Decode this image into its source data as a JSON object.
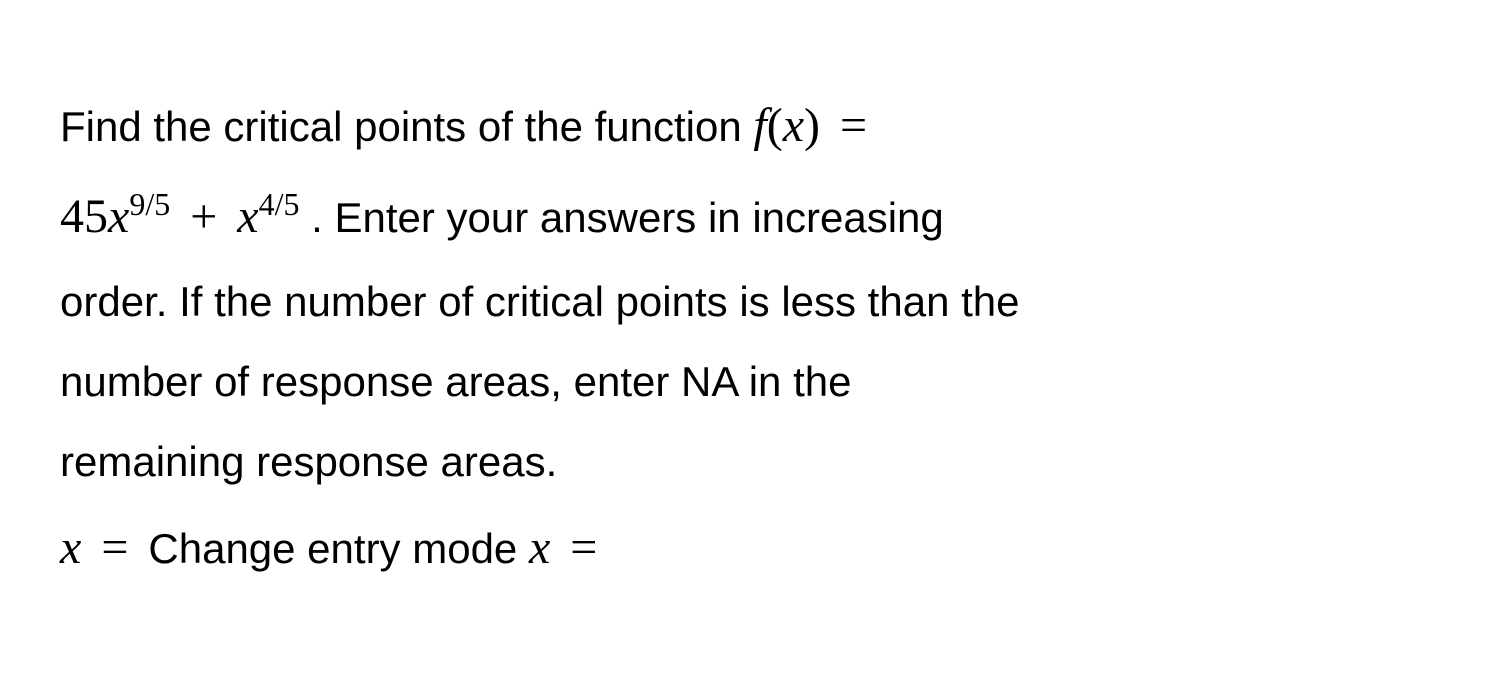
{
  "problem": {
    "text1": "Find the critical points of the function ",
    "func_lhs": "f",
    "func_paren_open": "(",
    "func_var": "x",
    "func_paren_close": ")",
    "equals": " = ",
    "coeff1": "45",
    "var1": "x",
    "exp1": "9/5",
    "plus": " + ",
    "var2": "x",
    "exp2": "4/5",
    "text2": " . Enter your answers in increasing",
    "text3": "order. If the number of critical points is less than the",
    "text4": "number of response areas, enter NA in the",
    "text5": "remaining response areas.",
    "answer_var1": "x",
    "answer_eq1": " = ",
    "change_mode": " Change entry mode ",
    "answer_var2": "x",
    "answer_eq2": " ="
  },
  "style": {
    "background_color": "#ffffff",
    "text_color": "#000000",
    "body_fontsize": 42,
    "math_fontsize": 48,
    "sup_fontsize": 32,
    "line_height": 1.9,
    "body_font": "Arial, Helvetica, sans-serif",
    "math_font": "Times New Roman, Times, serif"
  }
}
